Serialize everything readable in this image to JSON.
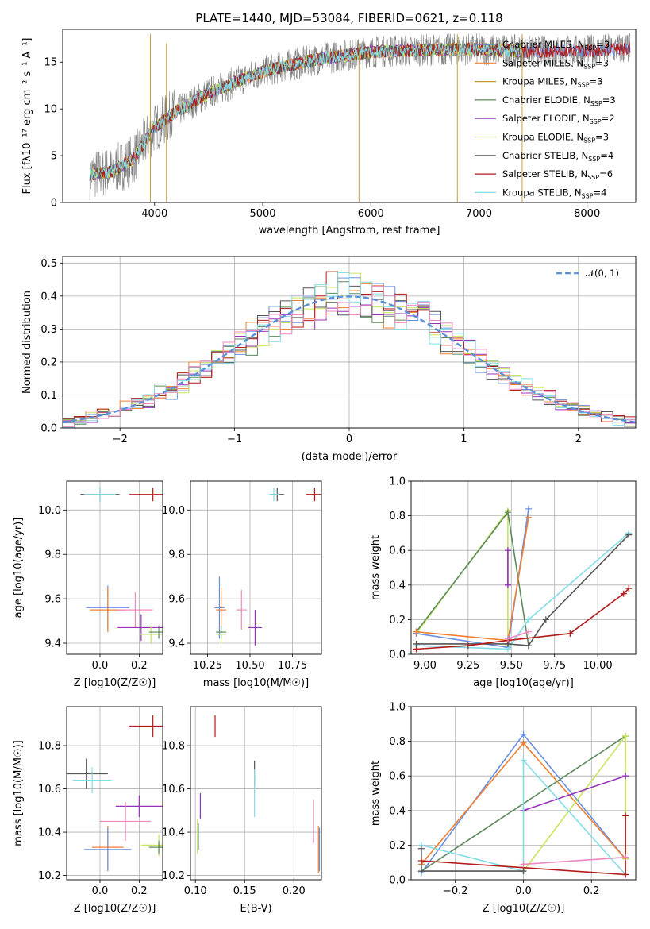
{
  "colors": {
    "Chabrier MILES": "#6a8fe0",
    "Salpeter MILES": "#f07f32",
    "Kroupa MILES": "#c69a2e",
    "Chabrier ELODIE": "#5d8a5d",
    "Salpeter ELODIE": "#9632b8",
    "Kroupa ELODIE": "#c8e65a",
    "Chabrier STELIB": "#555555",
    "Salpeter STELIB": "#b41a1a",
    "Kroupa STELIB": "#84dce6",
    "pink": "#ee88c0",
    "gauss": "#5b8fd8"
  },
  "chart_data": [
    {
      "type": "line",
      "title": "PLATE=1440, MJD=53084, FIBERID=0621, z=0.118",
      "xlabel": "wavelength [Angstrom, rest frame]",
      "ylabel": "Flux [fλ10⁻¹⁷ erg cm⁻² s⁻¹ A⁻¹]",
      "xlim": [
        3150,
        8450
      ],
      "ylim": [
        0,
        18.5
      ],
      "xticks": [
        "4000",
        "5000",
        "6000",
        "7000",
        "8000"
      ],
      "yticks": [
        "0",
        "5",
        "10",
        "15"
      ],
      "legend_position": "right",
      "legend": [
        {
          "base": "Chabrier MILES, N",
          "sub": "SSP",
          "tail": "=3"
        },
        {
          "base": "Salpeter MILES, N",
          "sub": "SSP",
          "tail": "=3"
        },
        {
          "base": "Kroupa MILES, N",
          "sub": "SSP",
          "tail": "=3"
        },
        {
          "base": "Chabrier ELODIE, N",
          "sub": "SSP",
          "tail": "=3"
        },
        {
          "base": "Salpeter ELODIE, N",
          "sub": "SSP",
          "tail": "=2"
        },
        {
          "base": "Kroupa ELODIE, N",
          "sub": "SSP",
          "tail": "=3"
        },
        {
          "base": "Chabrier STELIB, N",
          "sub": "SSP",
          "tail": "=4"
        },
        {
          "base": "Salpeter STELIB, N",
          "sub": "SSP",
          "tail": "=6"
        },
        {
          "base": "Kroupa STELIB, N",
          "sub": "SSP",
          "tail": "=4"
        }
      ],
      "continuum_x": [
        3400,
        3600,
        3800,
        4000,
        4200,
        4500,
        5000,
        5500,
        6000,
        6500,
        7000,
        7500,
        8000,
        8400
      ],
      "continuum_y": [
        3.0,
        3.3,
        4.6,
        8.0,
        9.7,
        11.7,
        14.0,
        15.3,
        16.1,
        16.3,
        16.4,
        16.1,
        16.2,
        16.5
      ],
      "series": [
        {
          "x": [
            3400,
            8400
          ]
        },
        {
          "x": [
            3400,
            7400
          ]
        },
        {
          "x": [
            3400,
            7400
          ]
        },
        {
          "x": [
            3400,
            7400
          ]
        },
        {
          "x": [
            3400,
            7400
          ]
        },
        {
          "x": [
            3400,
            7400
          ]
        },
        {
          "x": [
            3400,
            7400
          ]
        },
        {
          "x": [
            3400,
            8400
          ]
        },
        {
          "x": [
            3400,
            7400
          ]
        }
      ]
    },
    {
      "type": "histogram",
      "xlabel": "(data-model)/error",
      "ylabel": "Normed distribution",
      "xlim": [
        -2.5,
        2.5
      ],
      "ylim": [
        0,
        0.52
      ],
      "xticks": [
        "−2",
        "−1",
        "0",
        "1",
        "2"
      ],
      "yticks": [
        "0.0",
        "0.1",
        "0.2",
        "0.3",
        "0.4",
        "0.5"
      ],
      "bins": {
        "start": -2.5,
        "width": 0.1,
        "count": 50
      },
      "gaussian_label": "𝒩(0, 1)",
      "series_colors": [
        "Chabrier MILES",
        "Salpeter MILES",
        "Chabrier ELODIE",
        "Salpeter ELODIE",
        "Kroupa ELODIE",
        "Chabrier STELIB",
        "Salpeter STELIB",
        "Kroupa STELIB",
        "pink"
      ]
    },
    {
      "type": "scatter",
      "xlabel": "Z [log10(Z/Z☉)]",
      "ylabel": "age [log10(age/yr)]",
      "xlim": [
        -0.17,
        0.32
      ],
      "ylim": [
        9.35,
        10.13
      ],
      "xticks": [
        "0.0",
        "0.2"
      ],
      "yticks": [
        "9.4",
        "9.6",
        "9.8",
        "10.0"
      ],
      "points": [
        {
          "c": "Chabrier STELIB",
          "x": 0.0,
          "y": 10.07,
          "xe": 0.1,
          "ye": 0.03
        },
        {
          "c": "Kroupa STELIB",
          "x": 0.0,
          "y": 10.07,
          "xe": 0.08,
          "ye": 0.03
        },
        {
          "c": "Salpeter STELIB",
          "x": 0.27,
          "y": 10.07,
          "xe": 0.12,
          "ye": 0.03
        },
        {
          "c": "Chabrier MILES",
          "x": 0.04,
          "y": 9.56,
          "xe": 0.11,
          "ye": 0.1
        },
        {
          "c": "Salpeter MILES",
          "x": 0.04,
          "y": 9.55,
          "xe": 0.09,
          "ye": 0.1
        },
        {
          "c": "pink",
          "x": 0.18,
          "y": 9.55,
          "xe": 0.09,
          "ye": 0.08
        },
        {
          "c": "Salpeter ELODIE",
          "x": 0.21,
          "y": 9.47,
          "xe": 0.12,
          "ye": 0.06
        },
        {
          "c": "Kroupa ELODIE",
          "x": 0.26,
          "y": 9.44,
          "xe": 0.06,
          "ye": 0.04
        },
        {
          "c": "Chabrier ELODIE",
          "x": 0.3,
          "y": 9.45,
          "xe": 0.05,
          "ye": 0.03
        }
      ]
    },
    {
      "type": "scatter",
      "xlabel": "mass [log10(M/M☉)]",
      "ylabel": "",
      "xlim": [
        10.15,
        10.92
      ],
      "ylim": [
        9.35,
        10.13
      ],
      "xticks": [
        "10.25",
        "10.50",
        "10.75"
      ],
      "yticks": [
        "9.4",
        "9.6",
        "9.8",
        "10.0"
      ],
      "points": [
        {
          "c": "Chabrier STELIB",
          "x": 10.66,
          "y": 10.07,
          "xe": 0.04,
          "ye": 0.03
        },
        {
          "c": "Kroupa STELIB",
          "x": 10.64,
          "y": 10.07,
          "xe": 0.03,
          "ye": 0.03
        },
        {
          "c": "Salpeter STELIB",
          "x": 10.88,
          "y": 10.07,
          "xe": 0.05,
          "ye": 0.03
        },
        {
          "c": "Chabrier MILES",
          "x": 10.32,
          "y": 9.56,
          "xe": 0.03,
          "ye": 0.14
        },
        {
          "c": "Salpeter MILES",
          "x": 10.33,
          "y": 9.55,
          "xe": 0.03,
          "ye": 0.1
        },
        {
          "c": "pink",
          "x": 10.45,
          "y": 9.55,
          "xe": 0.03,
          "ye": 0.09
        },
        {
          "c": "Salpeter ELODIE",
          "x": 10.53,
          "y": 9.47,
          "xe": 0.04,
          "ye": 0.08
        },
        {
          "c": "Kroupa ELODIE",
          "x": 10.33,
          "y": 9.44,
          "xe": 0.03,
          "ye": 0.04
        },
        {
          "c": "Chabrier ELODIE",
          "x": 10.33,
          "y": 9.45,
          "xe": 0.03,
          "ye": 0.03
        }
      ]
    },
    {
      "type": "line",
      "xlabel": "age [log10(age/yr)]",
      "ylabel": "mass weight",
      "xlim": [
        8.92,
        10.22
      ],
      "ylim": [
        0,
        1
      ],
      "xticks": [
        "9.00",
        "9.25",
        "9.50",
        "9.75",
        "10.00"
      ],
      "yticks": [
        "0.0",
        "0.2",
        "0.4",
        "0.6",
        "0.8",
        "1.0"
      ],
      "series": [
        {
          "c": "Kroupa ELODIE",
          "x": [
            8.95,
            9.48,
            9.48
          ],
          "y": [
            0.12,
            0.83,
            0.05
          ]
        },
        {
          "c": "Chabrier ELODIE",
          "x": [
            8.95,
            9.48,
            9.6
          ],
          "y": [
            0.13,
            0.82,
            0.05
          ]
        },
        {
          "c": "Chabrier MILES",
          "x": [
            8.95,
            9.48,
            9.6
          ],
          "y": [
            0.12,
            0.04,
            0.84
          ]
        },
        {
          "c": "Salpeter MILES",
          "x": [
            8.95,
            9.48,
            9.6
          ],
          "y": [
            0.13,
            0.08,
            0.79
          ]
        },
        {
          "c": "Kroupa STELIB",
          "x": [
            8.95,
            9.48,
            9.6,
            10.18
          ],
          "y": [
            0.05,
            0.03,
            0.2,
            0.7
          ]
        },
        {
          "c": "Chabrier STELIB",
          "x": [
            8.95,
            9.48,
            9.6,
            9.7,
            10.18
          ],
          "y": [
            0.06,
            0.06,
            0.05,
            0.2,
            0.69
          ]
        },
        {
          "c": "Salpeter STELIB",
          "x": [
            8.95,
            9.25,
            9.48,
            9.84,
            10.15,
            10.18
          ],
          "y": [
            0.03,
            0.05,
            0.08,
            0.12,
            0.35,
            0.38
          ]
        },
        {
          "c": "Salpeter ELODIE",
          "x": [
            9.48,
            9.48
          ],
          "y": [
            0.4,
            0.6
          ]
        },
        {
          "c": "pink",
          "x": [
            9.48,
            9.6
          ],
          "y": [
            0.09,
            0.13
          ]
        }
      ]
    },
    {
      "type": "scatter",
      "xlabel": "Z [log10(Z/Z☉)]",
      "ylabel": "mass [log10(M/M☉)]",
      "xlim": [
        -0.17,
        0.32
      ],
      "ylim": [
        10.18,
        10.98
      ],
      "xticks": [
        "0.0",
        "0.2"
      ],
      "yticks": [
        "10.2",
        "10.4",
        "10.6",
        "10.8"
      ],
      "points": [
        {
          "c": "Salpeter STELIB",
          "x": 0.27,
          "y": 10.89,
          "xe": 0.12,
          "ye": 0.05
        },
        {
          "c": "Chabrier STELIB",
          "x": -0.07,
          "y": 10.67,
          "xe": 0.11,
          "ye": 0.07
        },
        {
          "c": "Kroupa STELIB",
          "x": -0.04,
          "y": 10.64,
          "xe": 0.1,
          "ye": 0.06
        },
        {
          "c": "Salpeter ELODIE",
          "x": 0.2,
          "y": 10.52,
          "xe": 0.12,
          "ye": 0.05
        },
        {
          "c": "pink",
          "x": 0.13,
          "y": 10.45,
          "xe": 0.13,
          "ye": 0.09
        },
        {
          "c": "Kroupa ELODIE",
          "x": 0.3,
          "y": 10.34,
          "xe": 0.09,
          "ye": 0.05
        },
        {
          "c": "Salpeter MILES",
          "x": 0.04,
          "y": 10.33,
          "xe": 0.08,
          "ye": 0.1
        },
        {
          "c": "Chabrier MILES",
          "x": 0.04,
          "y": 10.32,
          "xe": 0.12,
          "ye": 0.1
        },
        {
          "c": "Chabrier ELODIE",
          "x": 0.3,
          "y": 10.33,
          "xe": 0.05,
          "ye": 0.03
        }
      ]
    },
    {
      "type": "scatter",
      "xlabel": "E(B-V)",
      "ylabel": "",
      "xlim": [
        0.095,
        0.228
      ],
      "ylim": [
        10.18,
        10.98
      ],
      "xticks": [
        "0.10",
        "0.15",
        "0.20"
      ],
      "yticks": [
        "10.2",
        "10.4",
        "10.6",
        "10.8"
      ],
      "points": [
        {
          "c": "Salpeter STELIB",
          "x": 0.12,
          "y": 10.89,
          "xe": 0,
          "ye": 0.05
        },
        {
          "c": "Chabrier STELIB",
          "x": 0.16,
          "y": 10.67,
          "xe": 0,
          "ye": 0.06
        },
        {
          "c": "Kroupa STELIB",
          "x": 0.16,
          "y": 10.58,
          "xe": 0,
          "ye": 0.11
        },
        {
          "c": "Salpeter ELODIE",
          "x": 0.105,
          "y": 10.52,
          "xe": 0,
          "ye": 0.06
        },
        {
          "c": "pink",
          "x": 0.22,
          "y": 10.45,
          "xe": 0,
          "ye": 0.1
        },
        {
          "c": "Kroupa ELODIE",
          "x": 0.102,
          "y": 10.38,
          "xe": 0,
          "ye": 0.08
        },
        {
          "c": "Chabrier ELODIE",
          "x": 0.103,
          "y": 10.38,
          "xe": 0,
          "ye": 0.06
        },
        {
          "c": "Salpeter MILES",
          "x": 0.225,
          "y": 10.32,
          "xe": 0,
          "ye": 0.11
        },
        {
          "c": "Chabrier MILES",
          "x": 0.226,
          "y": 10.32,
          "xe": 0,
          "ye": 0.1
        }
      ]
    },
    {
      "type": "line",
      "xlabel": "Z [log10(Z/Z☉)]",
      "ylabel": "mass weight",
      "xlim": [
        -0.33,
        0.33
      ],
      "ylim": [
        0,
        1
      ],
      "xticks": [
        "−0.2",
        "0.0",
        "0.2"
      ],
      "yticks": [
        "0.0",
        "0.2",
        "0.4",
        "0.6",
        "0.8",
        "1.0"
      ],
      "series": [
        {
          "c": "Chabrier MILES",
          "x": [
            -0.3,
            0.0,
            0.3
          ],
          "y": [
            0.04,
            0.84,
            0.12
          ]
        },
        {
          "c": "Salpeter MILES",
          "x": [
            -0.3,
            0.0,
            0.3
          ],
          "y": [
            0.09,
            0.79,
            0.12
          ]
        },
        {
          "c": "Chabrier ELODIE",
          "x": [
            -0.3,
            0.3
          ],
          "y": [
            0.05,
            0.83
          ]
        },
        {
          "c": "Kroupa ELODIE",
          "x": [
            0.0,
            0.3,
            0.3
          ],
          "y": [
            0.05,
            0.83,
            0.12
          ]
        },
        {
          "c": "Salpeter ELODIE",
          "x": [
            0.0,
            0.3
          ],
          "y": [
            0.4,
            0.6
          ]
        },
        {
          "c": "Kroupa STELIB",
          "x": [
            -0.3,
            0.0,
            0.0,
            0.3
          ],
          "y": [
            0.2,
            0.05,
            0.69,
            0.03
          ]
        },
        {
          "c": "Chabrier STELIB",
          "x": [
            -0.3,
            -0.3,
            0.0
          ],
          "y": [
            0.18,
            0.05,
            0.05
          ]
        },
        {
          "c": "Salpeter STELIB",
          "x": [
            -0.3,
            0.3,
            0.3
          ],
          "y": [
            0.11,
            0.03,
            0.37
          ]
        },
        {
          "c": "pink",
          "x": [
            0.0,
            0.3
          ],
          "y": [
            0.09,
            0.13
          ]
        }
      ]
    }
  ]
}
